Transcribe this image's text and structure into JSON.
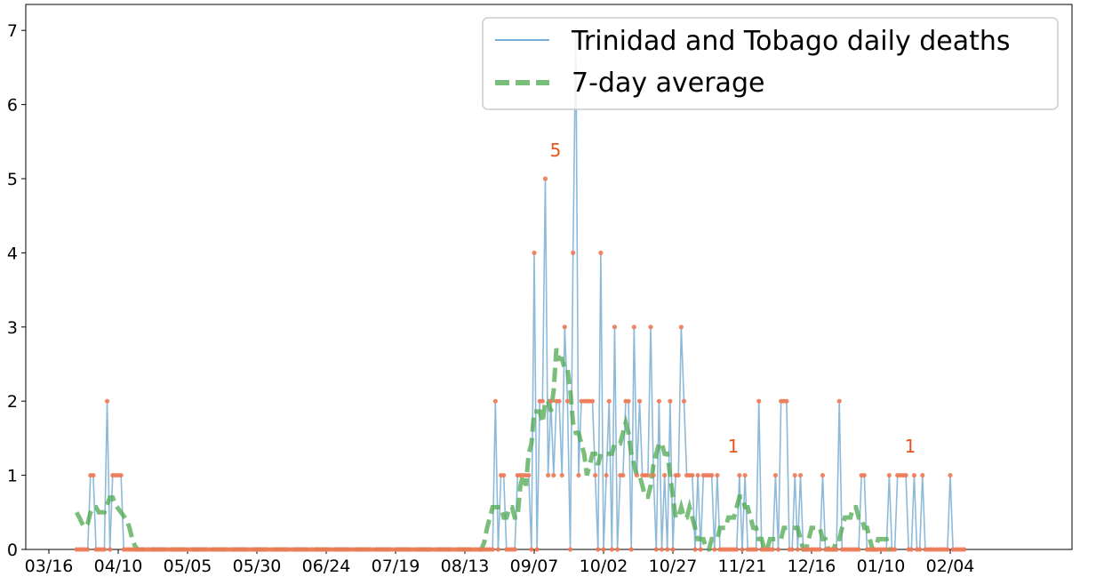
{
  "chart_data": {
    "type": "line",
    "x_unit": "date",
    "x_start": "03/16",
    "x_tick_labels": [
      "03/16",
      "04/10",
      "05/05",
      "05/30",
      "06/24",
      "07/19",
      "08/13",
      "09/07",
      "10/02",
      "10/27",
      "11/21",
      "12/16",
      "01/10",
      "02/04"
    ],
    "y_tick_labels": [
      "0",
      "1",
      "2",
      "3",
      "4",
      "5",
      "6",
      "7"
    ],
    "ylim": [
      0,
      7.35
    ],
    "grid": false,
    "legend_position": "top-right",
    "series": [
      {
        "name": "Trinidad and Tobago daily deaths",
        "color": "#7aaed4",
        "marker_color": "#ee7a55",
        "values": [
          0,
          0,
          0,
          0,
          0,
          1,
          1,
          0,
          0,
          0,
          0,
          2,
          0,
          1,
          1,
          1,
          1,
          0,
          0,
          0,
          0,
          0,
          0,
          0,
          0,
          0,
          0,
          0,
          0,
          0,
          0,
          0,
          0,
          0,
          0,
          0,
          0,
          0,
          0,
          0,
          0,
          0,
          0,
          0,
          0,
          0,
          0,
          0,
          0,
          0,
          0,
          0,
          0,
          0,
          0,
          0,
          0,
          0,
          0,
          0,
          0,
          0,
          0,
          0,
          0,
          0,
          0,
          0,
          0,
          0,
          0,
          0,
          0,
          0,
          0,
          0,
          0,
          0,
          0,
          0,
          0,
          0,
          0,
          0,
          0,
          0,
          0,
          0,
          0,
          0,
          0,
          0,
          0,
          0,
          0,
          0,
          0,
          0,
          0,
          0,
          0,
          0,
          0,
          0,
          0,
          0,
          0,
          0,
          0,
          0,
          0,
          0,
          0,
          0,
          0,
          0,
          0,
          0,
          0,
          0,
          0,
          0,
          0,
          0,
          0,
          0,
          0,
          0,
          0,
          0,
          0,
          0,
          0,
          0,
          0,
          0,
          0,
          0,
          0,
          0,
          0,
          0,
          0,
          0,
          0,
          0,
          0,
          0,
          0,
          0,
          0,
          2,
          0,
          1,
          1,
          0,
          0,
          0,
          0,
          1,
          1,
          1,
          1,
          1,
          0,
          4,
          0,
          2,
          2,
          5,
          1,
          2,
          1,
          2,
          2,
          1,
          3,
          2,
          0,
          4,
          7,
          1,
          2,
          2,
          2,
          2,
          2,
          1,
          0,
          4,
          0,
          1,
          2,
          0,
          3,
          0,
          1,
          1,
          2,
          2,
          0,
          3,
          1,
          2,
          1,
          1,
          1,
          3,
          1,
          0,
          2,
          0,
          1,
          0,
          2,
          0,
          1,
          1,
          3,
          2,
          1,
          1,
          1,
          0,
          1,
          0,
          1,
          1,
          1,
          1,
          0,
          1,
          0,
          0,
          0,
          0,
          0,
          0,
          0,
          1,
          0,
          1,
          0,
          0,
          0,
          0,
          2,
          0,
          0,
          0,
          0,
          0,
          1,
          0,
          2,
          2,
          2,
          0,
          0,
          1,
          0,
          1,
          0,
          0,
          0,
          0,
          0,
          0,
          0,
          1,
          0,
          0,
          0,
          0,
          0,
          2,
          0,
          0,
          0,
          0,
          0,
          0,
          0,
          1,
          1,
          0,
          0,
          0,
          0,
          0,
          0,
          0,
          0,
          1,
          0,
          0,
          1,
          1,
          1,
          1,
          0,
          0,
          1,
          0,
          0,
          1,
          0,
          0,
          0,
          0,
          0,
          0,
          0,
          0,
          0,
          1,
          0,
          0,
          0,
          0,
          0
        ]
      },
      {
        "name": "7-day average",
        "color": "#4fa84f",
        "values": [
          0.5,
          0.43,
          0.35,
          0.3,
          0.35,
          0.5,
          0.57,
          0.57,
          0.5,
          0.5,
          0.5,
          0.6,
          0.7,
          0.7,
          0.6,
          0.55,
          0.5,
          0.45,
          0.4,
          0.3,
          0.15,
          0.05,
          0,
          0,
          0,
          0,
          0,
          0,
          0,
          0,
          0,
          0,
          0,
          0,
          0,
          0,
          0,
          0,
          0,
          0,
          0,
          0,
          0,
          0,
          0,
          0,
          0,
          0,
          0,
          0,
          0,
          0,
          0,
          0,
          0,
          0,
          0,
          0,
          0,
          0,
          0,
          0,
          0,
          0,
          0,
          0,
          0,
          0,
          0,
          0,
          0,
          0,
          0,
          0,
          0,
          0,
          0,
          0,
          0,
          0,
          0,
          0,
          0,
          0,
          0,
          0,
          0,
          0,
          0,
          0,
          0,
          0,
          0,
          0,
          0,
          0,
          0,
          0,
          0,
          0,
          0,
          0,
          0,
          0,
          0,
          0,
          0,
          0,
          0,
          0,
          0,
          0,
          0,
          0,
          0,
          0,
          0,
          0,
          0,
          0,
          0,
          0,
          0,
          0,
          0,
          0,
          0,
          0,
          0,
          0,
          0,
          0,
          0,
          0,
          0,
          0,
          0,
          0,
          0,
          0,
          0,
          0,
          0,
          0,
          0,
          0,
          0,
          0.1,
          0.29,
          0.43,
          0.57,
          0.57,
          0.57,
          0.57,
          0.43,
          0.43,
          0.57,
          0.57,
          0.43,
          0.43,
          0.86,
          1.0,
          0.86,
          1.29,
          1.43,
          1.86,
          1.86,
          1.86,
          1.71,
          2.0,
          2.0,
          1.86,
          2.14,
          2.71,
          2.57,
          2.57,
          2.43,
          2.43,
          2.14,
          1.71,
          1.57,
          1.57,
          1.43,
          1.29,
          1.0,
          1.14,
          1.29,
          1.29,
          1.14,
          1.29,
          1.29,
          1.29,
          1.29,
          1.29,
          1.43,
          1.43,
          1.43,
          1.57,
          1.71,
          1.57,
          1.29,
          1.14,
          1.0,
          1.0,
          0.86,
          0.71,
          0.71,
          0.86,
          1.14,
          1.29,
          1.43,
          1.43,
          1.29,
          1.29,
          1.0,
          0.71,
          0.43,
          0.43,
          0.57,
          0.43,
          0.43,
          0.57,
          0.43,
          0.29,
          0.14,
          0.14,
          0.14,
          0.0,
          0.0,
          0.14,
          0.14,
          0.14,
          0.29,
          0.29,
          0.29,
          0.43,
          0.43,
          0.43,
          0.57,
          0.71,
          0.71,
          0.57,
          0.57,
          0.43,
          0.29,
          0.29,
          0.14,
          0.14,
          0.0,
          0.0,
          0.14,
          0.14,
          0.14,
          0.14,
          0.14,
          0.29,
          0.29,
          0.29,
          0.29,
          0.29,
          0.29,
          0.14,
          0.0,
          0.0,
          0.14,
          0.29,
          0.29,
          0.29,
          0.29,
          0.14,
          0.14,
          0.0,
          0.0,
          0.0,
          0.14,
          0.14,
          0.29,
          0.43,
          0.43,
          0.43,
          0.57,
          0.57,
          0.43,
          0.43,
          0.29,
          0.29,
          0.14,
          0.0,
          0.0,
          0.14,
          0.14,
          0.14,
          0.14,
          0.0,
          0.0
        ]
      }
    ],
    "annotations": [
      "5",
      "1",
      "1"
    ]
  }
}
